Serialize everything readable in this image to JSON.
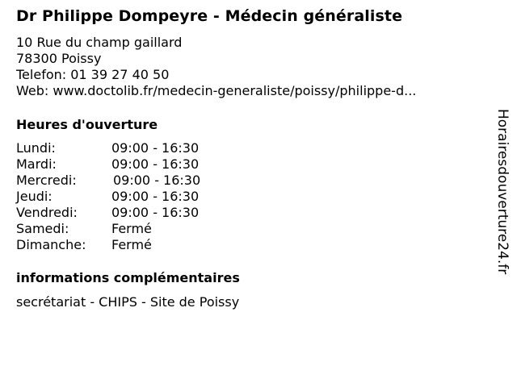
{
  "title": "Dr Philippe Dompeyre - Médecin généraliste",
  "address": {
    "street": "10 Rue du champ gaillard",
    "city": "78300 Poissy",
    "phone": "Telefon: 01 39 27 40 50",
    "web": "Web: www.doctolib.fr/medecin-generaliste/poissy/philippe-d..."
  },
  "hours_heading": "Heures d'ouverture",
  "hours": [
    {
      "day": "Lundi:",
      "time": "09:00 - 16:30"
    },
    {
      "day": "Mardi:",
      "time": "09:00 - 16:30"
    },
    {
      "day": "Mercredi:",
      "time": "09:00 - 16:30"
    },
    {
      "day": "Jeudi:",
      "time": "09:00 - 16:30"
    },
    {
      "day": "Vendredi:",
      "time": "09:00 - 16:30"
    },
    {
      "day": "Samedi:",
      "time": "Fermé"
    },
    {
      "day": "Dimanche:",
      "time": "Fermé"
    }
  ],
  "extra_heading": "informations complémentaires",
  "extra_text": "secrétariat - CHIPS - Site de Poissy",
  "watermark": "Horairesdouverture24.fr"
}
